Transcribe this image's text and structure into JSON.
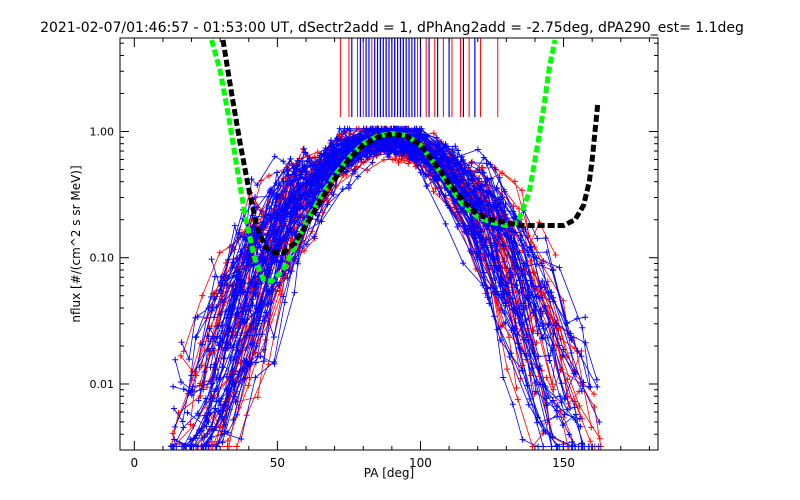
{
  "chart_data": {
    "type": "line",
    "title": "2021-02-07/01:46:57 - 01:53:00 UT, dSectr2add = 1, dPhAng2add = -2.75deg, dPA290_est=   1.1deg",
    "xlabel": "PA [deg]",
    "ylabel": "nflux [#/(cm^2 s sr MeV)]",
    "xlim": [
      -5,
      183
    ],
    "ylim": [
      0.003,
      5.5
    ],
    "yscale": "log",
    "x_ticks": [
      0,
      50,
      100,
      150
    ],
    "y_ticks": [
      {
        "value": 0.01,
        "label": "0.01"
      },
      {
        "value": 0.1,
        "label": "0.10"
      },
      {
        "value": 1.0,
        "label": "1.00"
      }
    ],
    "grid": false,
    "legend": "none",
    "colors": {
      "red_series": "#ff0000",
      "blue_series": "#0000ff",
      "green_fit": "#00ff00",
      "black_fit": "#000000",
      "axes": "#000000"
    },
    "series": [
      {
        "style": "green-dashed",
        "color": "#00ff00",
        "x": [
          27,
          30,
          33,
          36,
          39,
          42,
          45,
          48,
          52,
          56,
          60,
          65,
          70,
          75,
          80,
          85,
          90,
          95,
          100,
          105,
          110,
          115,
          120,
          125,
          130,
          134,
          138,
          141,
          143,
          145,
          147
        ],
        "y": [
          5.3,
          3.0,
          1.3,
          0.5,
          0.2,
          0.1,
          0.068,
          0.065,
          0.08,
          0.12,
          0.19,
          0.3,
          0.45,
          0.62,
          0.8,
          0.92,
          0.96,
          0.93,
          0.78,
          0.55,
          0.37,
          0.26,
          0.21,
          0.19,
          0.18,
          0.19,
          0.33,
          0.8,
          1.5,
          3.2,
          5.3
        ]
      },
      {
        "style": "black-dashed",
        "color": "#000000",
        "x": [
          31,
          34,
          37,
          40,
          43,
          46,
          49,
          52,
          56,
          60,
          65,
          70,
          75,
          80,
          85,
          90,
          95,
          100,
          105,
          110,
          115,
          120,
          125,
          130,
          135,
          140,
          145,
          150,
          154,
          157,
          159,
          160,
          161,
          162
        ],
        "y": [
          5.3,
          2.0,
          0.8,
          0.35,
          0.17,
          0.12,
          0.11,
          0.11,
          0.13,
          0.18,
          0.28,
          0.42,
          0.6,
          0.78,
          0.9,
          0.95,
          0.92,
          0.78,
          0.56,
          0.39,
          0.28,
          0.22,
          0.2,
          0.19,
          0.18,
          0.18,
          0.18,
          0.18,
          0.2,
          0.26,
          0.4,
          0.6,
          1.0,
          1.7
        ]
      }
    ],
    "scatter_families": [
      {
        "color": "#ff0000",
        "count": 40,
        "seed": 7
      },
      {
        "color": "#0000ff",
        "count": 62,
        "seed": 19
      }
    ],
    "tick_marks": {
      "red_x": [
        72,
        75,
        78,
        80,
        83,
        86,
        88,
        91,
        94,
        96,
        99,
        102,
        105,
        108,
        111,
        114,
        117,
        121,
        127
      ],
      "blue_x": [
        76,
        79,
        81,
        82,
        84,
        85,
        86,
        87,
        88,
        89,
        90,
        91,
        92,
        93,
        94,
        95,
        96,
        97,
        98,
        100,
        103,
        106,
        110,
        115,
        119
      ]
    }
  }
}
